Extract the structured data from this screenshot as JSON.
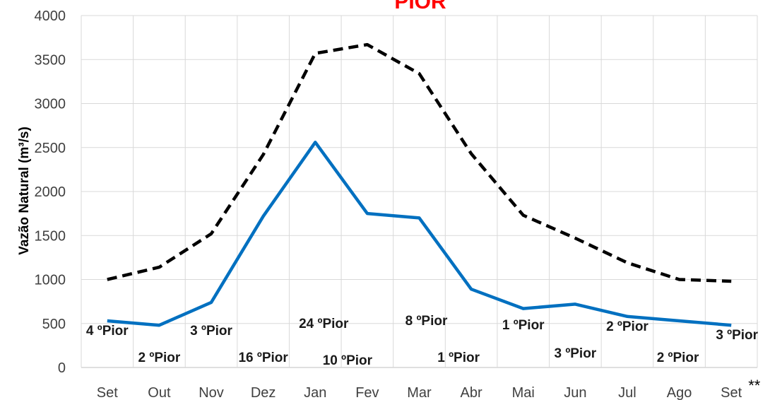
{
  "chart_data": {
    "type": "line",
    "title": "PIOR",
    "ylabel": "Vazão Natural (m³/s)",
    "xlabel": "",
    "categories": [
      "Set",
      "Out",
      "Nov",
      "Dez",
      "Jan",
      "Fev",
      "Mar",
      "Abr",
      "Mai",
      "Jun",
      "Jul",
      "Ago",
      "Set"
    ],
    "category_note": "**",
    "ylim": [
      0,
      4000
    ],
    "yticks": [
      0,
      500,
      1000,
      1500,
      2000,
      2500,
      3000,
      3500,
      4000
    ],
    "grid": true,
    "series": [
      {
        "style": "solid",
        "color": "#0070c0",
        "values": [
          530,
          480,
          740,
          1720,
          2560,
          1750,
          1700,
          890,
          670,
          720,
          580,
          530,
          480
        ]
      },
      {
        "style": "dashed",
        "color": "#000000",
        "values": [
          1000,
          1140,
          1520,
          2420,
          3570,
          3670,
          3340,
          2430,
          1730,
          1470,
          1190,
          1000,
          980
        ]
      }
    ],
    "annotations": [
      "4 ºPior",
      "2 ºPior",
      "3 ºPior",
      "16 ºPior",
      "24 ºPior",
      "10 ºPior",
      "8 ºPior",
      "1 ºPior",
      "1 ºPior",
      "3 ºPior",
      "2 ºPior",
      "2 ºPior",
      "3 ºPior"
    ]
  }
}
